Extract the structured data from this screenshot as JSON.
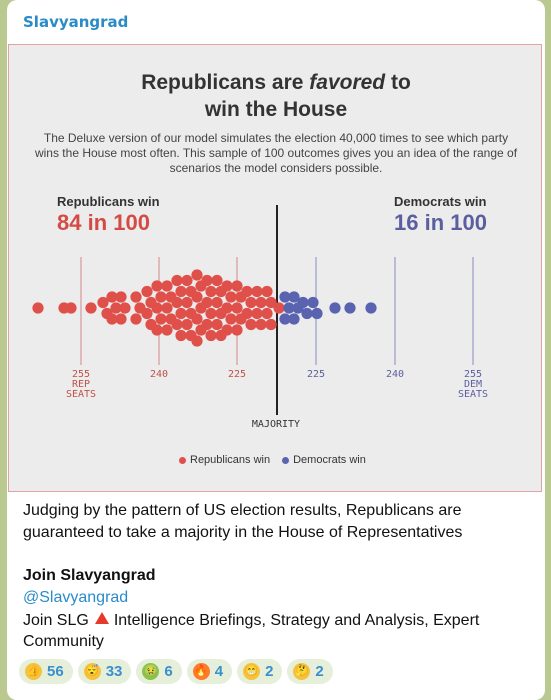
{
  "channel": {
    "name": "Slavyangrad"
  },
  "chart": {
    "title_line1_a": "Republicans are ",
    "title_line1_em": "favored",
    "title_line1_b": " to",
    "title_line2": "win the House",
    "subtitle": "The Deluxe version of our model simulates the election 40,000 times to see which party wins the House most often. This sample of 100 outcomes gives you an idea of the range of scenarios the model considers possible.",
    "rep_label": "Republicans win",
    "rep_value": "84 in 100",
    "dem_label": "Democrats win",
    "dem_value": "16 in 100",
    "ticks": [
      {
        "line1": "255",
        "line2": "REP",
        "line3": "SEATS",
        "color": "#c0504a"
      },
      {
        "line1": "240",
        "line2": "",
        "line3": "",
        "color": "#c0504a"
      },
      {
        "line1": "225",
        "line2": "",
        "line3": "",
        "color": "#c0504a"
      },
      {
        "line1": "225",
        "line2": "",
        "line3": "",
        "color": "#5a5fa0"
      },
      {
        "line1": "240",
        "line2": "",
        "line3": "",
        "color": "#5a5fa0"
      },
      {
        "line1": "255",
        "line2": "DEM",
        "line3": "SEATS",
        "color": "#5a5fa0"
      }
    ],
    "majority_label": "MAJORITY",
    "legend_rep": "Republicans win",
    "legend_dem": "Democrats win",
    "colors": {
      "rep": "#e0504a",
      "dem": "#5a63b0"
    }
  },
  "chart_data": {
    "type": "scatter",
    "title": "Republicans are favored to win the House",
    "series": [
      {
        "name": "Republicans win",
        "count": 84
      },
      {
        "name": "Democrats win",
        "count": 16
      }
    ],
    "x_ticks": [
      "255 REP SEATS",
      "240",
      "225",
      "MAJORITY",
      "225",
      "240",
      "255 DEM SEATS"
    ]
  },
  "post": {
    "caption": "Judging by the pattern of US election results, Republicans are guaranteed to take a majority in the House of Representatives",
    "join_title": "Join Slavyangrad",
    "handle": "@Slavyangrad",
    "promo_a": "Join SLG",
    "promo_b": "Intelligence Briefings, Strategy and Analysis, Expert Community"
  },
  "reactions": [
    {
      "icon": "thumbs-up-icon",
      "count": "56",
      "bg": "#f6c23e",
      "glyph": "👍"
    },
    {
      "icon": "yawning-face-icon",
      "count": "33",
      "bg": "#f6c23e",
      "glyph": "😴"
    },
    {
      "icon": "nauseated-face-icon",
      "count": "6",
      "bg": "#8bc34a",
      "glyph": "🤢"
    },
    {
      "icon": "fire-icon",
      "count": "4",
      "bg": "#ff7a2a",
      "glyph": "🔥"
    },
    {
      "icon": "grinning-face-icon",
      "count": "2",
      "bg": "#f6c23e",
      "glyph": "😁"
    },
    {
      "icon": "thinking-face-icon",
      "count": "2",
      "bg": "#f6c23e",
      "glyph": "🤔"
    }
  ]
}
